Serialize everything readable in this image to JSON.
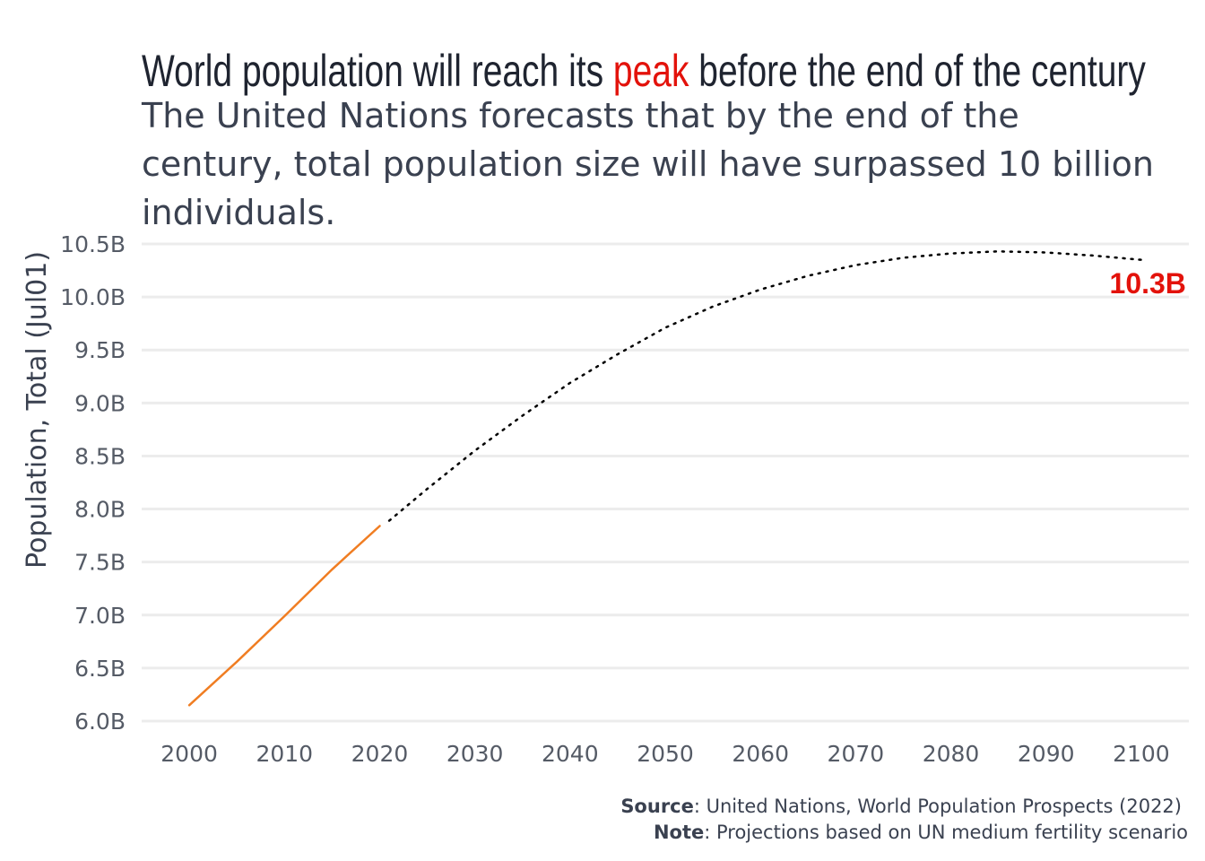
{
  "chart_data": {
    "type": "line",
    "title": {
      "before": "World population will reach its ",
      "highlight": "peak",
      "after": " before the end of the century"
    },
    "subtitle": [
      "The United Nations forecasts that by the end of the",
      "century, total population size will have surpassed 10 billion",
      "individuals."
    ],
    "ylabel": "Population, Total (Jul01)",
    "xlabel": "",
    "xlim": [
      1995,
      2105
    ],
    "ylim": [
      6.0,
      10.5
    ],
    "x_ticks": [
      2000,
      2010,
      2020,
      2030,
      2040,
      2050,
      2060,
      2070,
      2080,
      2090,
      2100
    ],
    "y_ticks": [
      {
        "value": 6.0,
        "label": "6.0B"
      },
      {
        "value": 6.5,
        "label": "6.5B"
      },
      {
        "value": 7.0,
        "label": "7.0B"
      },
      {
        "value": 7.5,
        "label": "7.5B"
      },
      {
        "value": 8.0,
        "label": "8.0B"
      },
      {
        "value": 8.5,
        "label": "8.5B"
      },
      {
        "value": 9.0,
        "label": "9.0B"
      },
      {
        "value": 9.5,
        "label": "9.5B"
      },
      {
        "value": 10.0,
        "label": "10.0B"
      },
      {
        "value": 10.5,
        "label": "10.5B"
      }
    ],
    "grid": true,
    "units": "billions",
    "series": [
      {
        "style": "solid",
        "x": [
          2000,
          2005,
          2010,
          2015,
          2020
        ],
        "y": [
          6.15,
          6.56,
          6.99,
          7.43,
          7.84
        ]
      },
      {
        "style": "dotted",
        "x": [
          2021,
          2025,
          2030,
          2035,
          2040,
          2045,
          2050,
          2055,
          2060,
          2065,
          2070,
          2075,
          2080,
          2085,
          2090,
          2095,
          2100
        ],
        "y": [
          7.89,
          8.19,
          8.55,
          8.88,
          9.19,
          9.46,
          9.71,
          9.91,
          10.07,
          10.2,
          10.3,
          10.37,
          10.41,
          10.43,
          10.42,
          10.39,
          10.35
        ]
      }
    ],
    "end_label": "10.3B",
    "colors": {
      "historical": "#f07d22",
      "projection": "#000000",
      "highlight": "#e3120b",
      "end_label": "#e3120b"
    }
  },
  "caption": {
    "source_label": "Source",
    "source_text": ": United Nations, World Population Prospects (2022)",
    "note_label": "Note",
    "note_text": ": Projections based on UN medium fertility scenario"
  }
}
